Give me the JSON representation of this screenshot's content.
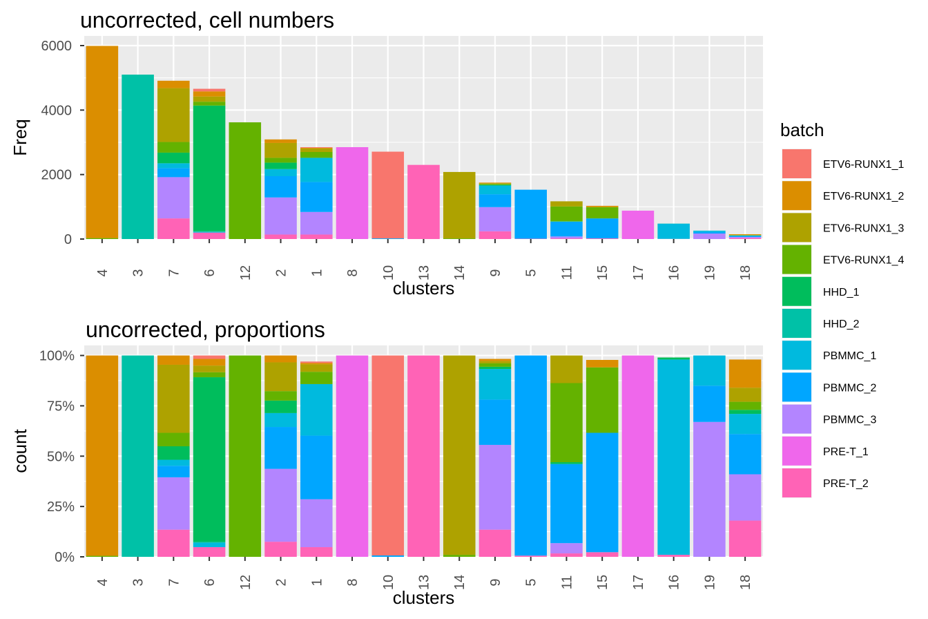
{
  "batches": [
    {
      "name": "ETV6-RUNX1_1",
      "color": "#F8766D"
    },
    {
      "name": "ETV6-RUNX1_2",
      "color": "#DB8E00"
    },
    {
      "name": "ETV6-RUNX1_3",
      "color": "#AEA200"
    },
    {
      "name": "ETV6-RUNX1_4",
      "color": "#64B200"
    },
    {
      "name": "HHD_1",
      "color": "#00BD5C"
    },
    {
      "name": "HHD_2",
      "color": "#00C1A7"
    },
    {
      "name": "PBMMC_1",
      "color": "#00BADE"
    },
    {
      "name": "PBMMC_2",
      "color": "#00A6FF"
    },
    {
      "name": "PBMMC_3",
      "color": "#B385FF"
    },
    {
      "name": "PRE-T_1",
      "color": "#EF67EB"
    },
    {
      "name": "PRE-T_2",
      "color": "#FF63B6"
    }
  ],
  "legend": {
    "title": "batch"
  },
  "chart_data": [
    {
      "type": "bar",
      "stacked": true,
      "title": "uncorrected, cell numbers",
      "xlabel": "clusters",
      "ylabel": "Freq",
      "ylim": [
        0,
        6300
      ],
      "yticks": [
        0,
        2000,
        4000,
        6000
      ],
      "ytick_labels": [
        "0",
        "2000",
        "4000",
        "6000"
      ],
      "grid": true,
      "legend_position": "right",
      "categories": [
        "4",
        "3",
        "7",
        "6",
        "12",
        "2",
        "1",
        "8",
        "10",
        "13",
        "14",
        "9",
        "5",
        "11",
        "15",
        "17",
        "16",
        "19",
        "18"
      ],
      "series": [
        {
          "name": "ETV6-RUNX1_1",
          "values": [
            0,
            0,
            0,
            80,
            0,
            0,
            20,
            0,
            2690,
            0,
            0,
            0,
            0,
            0,
            0,
            0,
            0,
            0,
            0
          ]
        },
        {
          "name": "ETV6-RUNX1_2",
          "values": [
            5960,
            0,
            230,
            160,
            0,
            110,
            20,
            0,
            0,
            0,
            0,
            20,
            0,
            0,
            40,
            0,
            0,
            0,
            20
          ]
        },
        {
          "name": "ETV6-RUNX1_3",
          "values": [
            0,
            0,
            1670,
            160,
            0,
            460,
            110,
            0,
            0,
            0,
            2060,
            20,
            0,
            160,
            0,
            0,
            0,
            0,
            10
          ]
        },
        {
          "name": "ETV6-RUNX1_4",
          "values": [
            30,
            0,
            330,
            120,
            3620,
            150,
            180,
            0,
            0,
            0,
            20,
            30,
            0,
            460,
            350,
            0,
            0,
            0,
            6
          ]
        },
        {
          "name": "HHD_1",
          "values": [
            0,
            0,
            330,
            3900,
            0,
            200,
            0,
            0,
            0,
            0,
            0,
            20,
            0,
            10,
            0,
            0,
            0,
            0,
            3
          ]
        },
        {
          "name": "HHD_2",
          "values": [
            0,
            5100,
            0,
            20,
            0,
            0,
            0,
            0,
            0,
            0,
            0,
            0,
            0,
            0,
            0,
            0,
            5,
            0,
            0
          ]
        },
        {
          "name": "PBMMC_1",
          "values": [
            0,
            0,
            150,
            20,
            0,
            220,
            750,
            0,
            0,
            0,
            0,
            270,
            0,
            0,
            0,
            0,
            470,
            40,
            15
          ]
        },
        {
          "name": "PBMMC_2",
          "values": [
            0,
            0,
            280,
            0,
            0,
            660,
            930,
            0,
            20,
            0,
            0,
            400,
            1520,
            460,
            620,
            0,
            0,
            50,
            30
          ]
        },
        {
          "name": "PBMMC_3",
          "values": [
            0,
            0,
            1280,
            0,
            0,
            1150,
            700,
            0,
            0,
            0,
            0,
            750,
            0,
            60,
            0,
            0,
            0,
            170,
            35
          ]
        },
        {
          "name": "PRE-T_1",
          "values": [
            0,
            0,
            0,
            0,
            0,
            0,
            0,
            2850,
            0,
            0,
            0,
            0,
            0,
            0,
            0,
            880,
            0,
            0,
            0
          ]
        },
        {
          "name": "PRE-T_2",
          "values": [
            0,
            0,
            640,
            200,
            0,
            140,
            140,
            0,
            0,
            2300,
            0,
            240,
            10,
            20,
            20,
            0,
            5,
            0,
            30
          ]
        }
      ]
    },
    {
      "type": "bar",
      "stacked": true,
      "percent": true,
      "title": "uncorrected, proportions",
      "xlabel": "clusters",
      "ylabel": "count",
      "ylim": [
        0,
        1.05
      ],
      "yticks": [
        0,
        0.25,
        0.5,
        0.75,
        1
      ],
      "ytick_labels": [
        "0%",
        "25%",
        "50%",
        "75%",
        "100%"
      ],
      "grid": true,
      "categories": [
        "4",
        "3",
        "7",
        "6",
        "12",
        "2",
        "1",
        "8",
        "10",
        "13",
        "14",
        "9",
        "5",
        "11",
        "15",
        "17",
        "16",
        "19",
        "18"
      ],
      "series": [
        {
          "name": "ETV6-RUNX1_1",
          "values": [
            0,
            0,
            0,
            0.017,
            0,
            0,
            0.007,
            0,
            0.993,
            0,
            0,
            0,
            0,
            0,
            0,
            0,
            0,
            0,
            0
          ]
        },
        {
          "name": "ETV6-RUNX1_2",
          "values": [
            0.995,
            0,
            0.046,
            0.033,
            0,
            0.034,
            0.007,
            0,
            0,
            0,
            0,
            0.011,
            0,
            0,
            0.037,
            0,
            0,
            0,
            0.14
          ]
        },
        {
          "name": "ETV6-RUNX1_3",
          "values": [
            0,
            0,
            0.338,
            0.033,
            0,
            0.143,
            0.037,
            0,
            0,
            0,
            0.99,
            0.011,
            0,
            0.137,
            0,
            0,
            0,
            0,
            0.07
          ]
        },
        {
          "name": "ETV6-RUNX1_4",
          "values": [
            0.005,
            0,
            0.067,
            0.025,
            1,
            0.047,
            0.061,
            0,
            0,
            0,
            0.01,
            0.017,
            0,
            0.393,
            0.325,
            0,
            0,
            0,
            0.04
          ]
        },
        {
          "name": "HHD_1",
          "values": [
            0,
            0,
            0.067,
            0.818,
            0,
            0.062,
            0,
            0,
            0,
            0,
            0,
            0.011,
            0,
            0.009,
            0,
            0,
            0.01,
            0,
            0.02
          ]
        },
        {
          "name": "HHD_2",
          "values": [
            0,
            1,
            0,
            0.004,
            0,
            0,
            0,
            0,
            0,
            0,
            0,
            0,
            0,
            0,
            0,
            0,
            0,
            0,
            0
          ]
        },
        {
          "name": "PBMMC_1",
          "values": [
            0,
            0,
            0.03,
            0.022,
            0,
            0.069,
            0.256,
            0,
            0,
            0,
            0,
            0.152,
            0,
            0,
            0,
            0,
            0.97,
            0.15,
            0.1
          ]
        },
        {
          "name": "PBMMC_2",
          "values": [
            0,
            0,
            0.057,
            0,
            0,
            0.208,
            0.316,
            0,
            0.007,
            0,
            0,
            0.225,
            0.994,
            0.393,
            0.593,
            0,
            0,
            0.18,
            0.2
          ]
        },
        {
          "name": "PBMMC_3",
          "values": [
            0,
            0,
            0.26,
            0,
            0,
            0.362,
            0.238,
            0,
            0,
            0,
            0,
            0.421,
            0,
            0.051,
            0,
            0,
            0,
            0.67,
            0.23
          ]
        },
        {
          "name": "PRE-T_1",
          "values": [
            0,
            0,
            0,
            0,
            0,
            0,
            0,
            1,
            0,
            0,
            0,
            0,
            0,
            0,
            0,
            1,
            0,
            0,
            0
          ]
        },
        {
          "name": "PRE-T_2",
          "values": [
            0,
            0,
            0.135,
            0.048,
            0,
            0.075,
            0.048,
            0,
            0,
            1,
            0,
            0.135,
            0.006,
            0.017,
            0.023,
            0,
            0.01,
            0,
            0.18
          ]
        }
      ]
    }
  ]
}
